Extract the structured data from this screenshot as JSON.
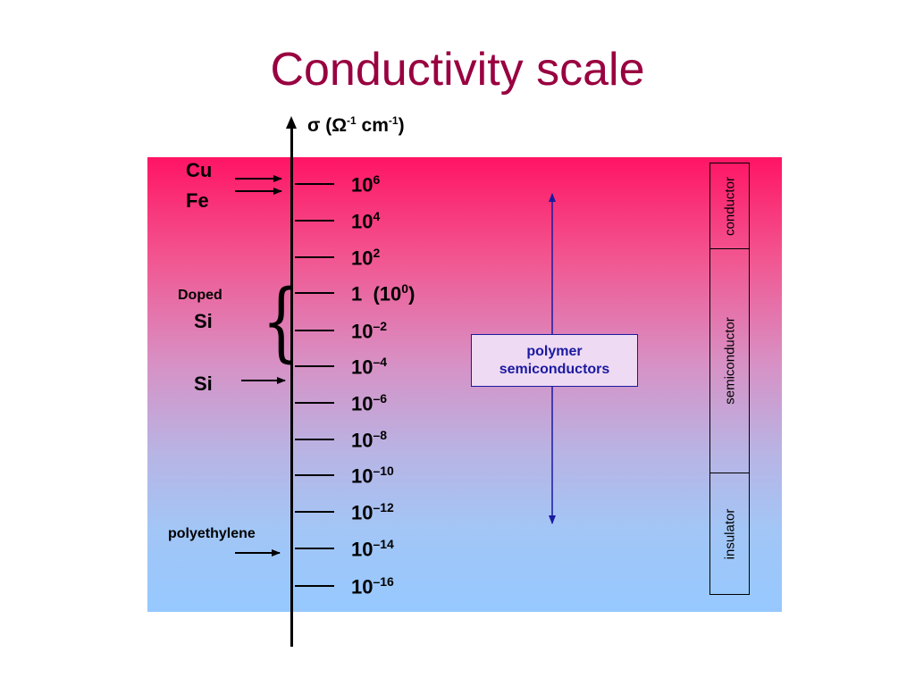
{
  "title": "Conductivity scale",
  "axis": {
    "symbol": "σ",
    "unit_open": " (Ω",
    "unit_sup1": "-1",
    "unit_mid": " cm",
    "unit_sup2": "-1",
    "unit_close": ")"
  },
  "ticks": [
    {
      "base": "10",
      "exp": "6",
      "suffix": ""
    },
    {
      "base": "10",
      "exp": "4",
      "suffix": ""
    },
    {
      "base": "10",
      "exp": "2",
      "suffix": ""
    },
    {
      "base": "1  (10",
      "exp": "0",
      "suffix": ")"
    },
    {
      "base": "10",
      "exp": "–2",
      "suffix": ""
    },
    {
      "base": "10",
      "exp": "–4",
      "suffix": ""
    },
    {
      "base": "10",
      "exp": "–6",
      "suffix": ""
    },
    {
      "base": "10",
      "exp": "–8",
      "suffix": ""
    },
    {
      "base": "10",
      "exp": "–10",
      "suffix": ""
    },
    {
      "base": "10",
      "exp": "–12",
      "suffix": ""
    },
    {
      "base": "10",
      "exp": "–14",
      "suffix": ""
    },
    {
      "base": "10",
      "exp": "–16",
      "suffix": ""
    }
  ],
  "materials": {
    "cu": "Cu",
    "fe": "Fe",
    "doped": "Doped",
    "doped_si": "Si",
    "si": "Si",
    "polyethylene": "polyethylene"
  },
  "classes": {
    "conductor": "conductor",
    "semiconductor": "semiconductor",
    "insulator": "insulator"
  },
  "polymer": {
    "line1": "polymer",
    "line2": "semiconductors"
  },
  "colors": {
    "title": "#990040",
    "panel_top": "#ff1464",
    "panel_bottom": "#96c8ff",
    "polymer_text": "#1a1aa0"
  }
}
